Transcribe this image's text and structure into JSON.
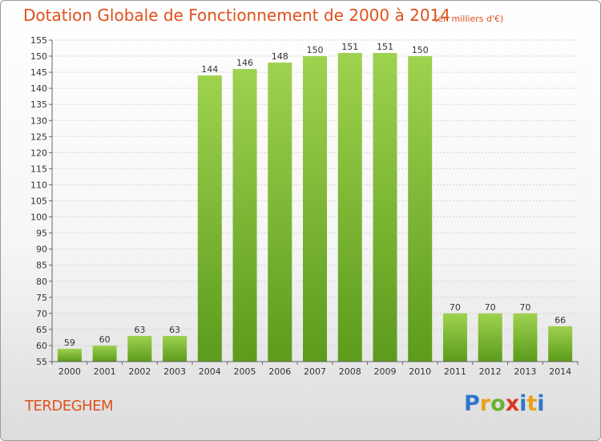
{
  "header": {
    "title": "Dotation Globale de Fonctionnement de 2000 à 2014",
    "unit": "(en milliers d'€)"
  },
  "commune": "TERDEGHEM",
  "logo": "Proxiti",
  "colors": {
    "bar_top": "#9ed24f",
    "bar_bottom": "#5c9b1c",
    "text_accent": "#e0501b"
  },
  "chart_data": {
    "type": "bar",
    "title": "Dotation Globale de Fonctionnement de 2000 à 2014",
    "categories": [
      "2000",
      "2001",
      "2002",
      "2003",
      "2004",
      "2005",
      "2006",
      "2007",
      "2008",
      "2009",
      "2010",
      "2011",
      "2012",
      "2013",
      "2014"
    ],
    "values": [
      59,
      60,
      63,
      63,
      144,
      146,
      148,
      150,
      151,
      151,
      150,
      70,
      70,
      70,
      66
    ],
    "ylim": [
      55,
      155
    ],
    "yticks": [
      55,
      60,
      65,
      70,
      75,
      80,
      85,
      90,
      95,
      100,
      105,
      110,
      115,
      120,
      125,
      130,
      135,
      140,
      145,
      150,
      155
    ],
    "grid": true,
    "legend": "none"
  }
}
